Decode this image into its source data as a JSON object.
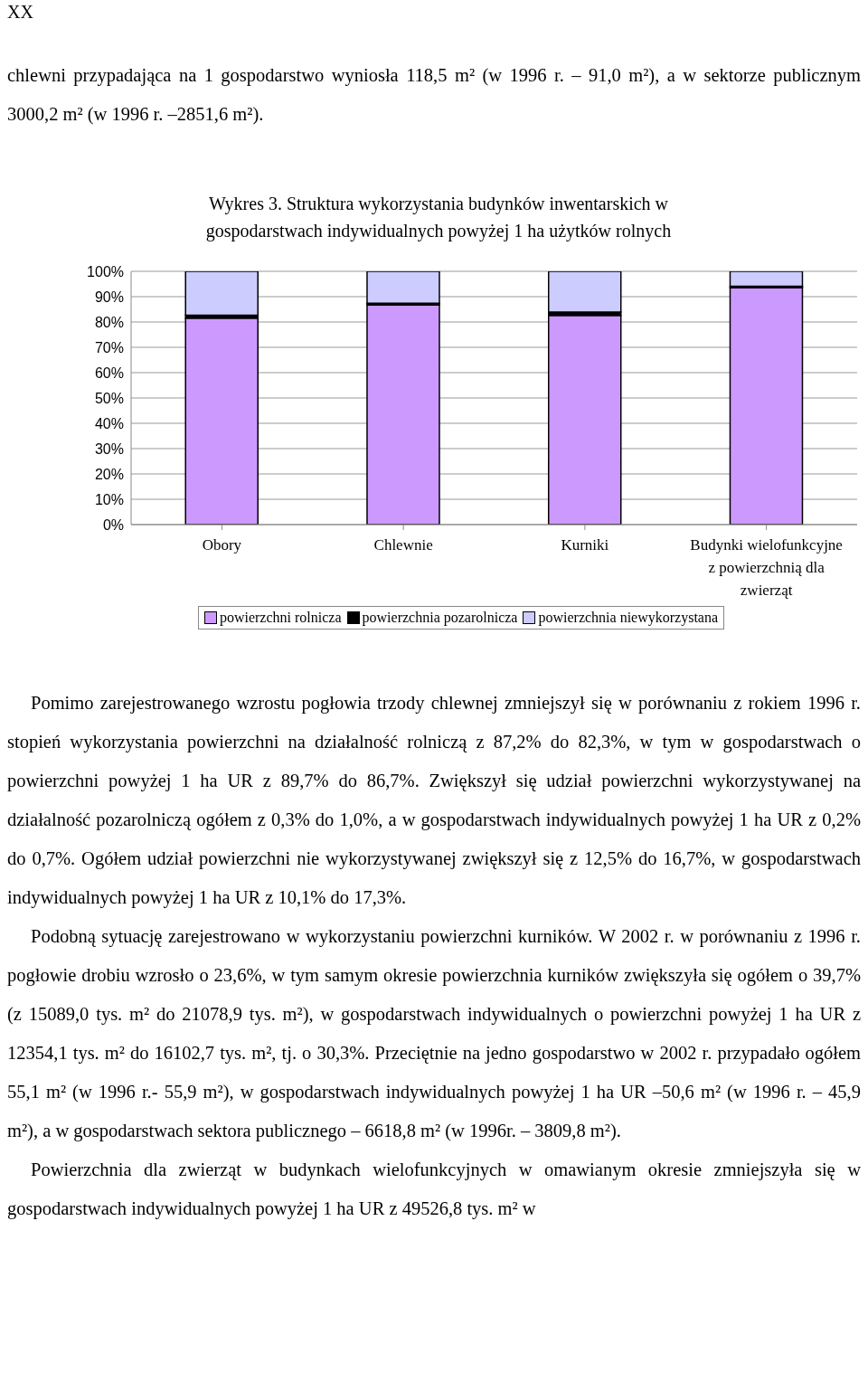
{
  "chart_data": {
    "type": "bar",
    "stacked": true,
    "title": "Wykres 3. Struktura wykorzystania budynków inwentarskich w gospodarstwach indywidualnych powyżej 1 ha użytków rolnych",
    "categories": [
      "Obory",
      "Chlewnie",
      "Kurniki",
      "Budynki wielofunkcyjne z powierzchnią dla zwierząt"
    ],
    "series": [
      {
        "name": "powierzchni rolnicza",
        "color": "#cc99ff",
        "values": [
          81.5,
          86.7,
          82.6,
          93.6
        ]
      },
      {
        "name": "powierzchnia pozarolnicza",
        "color": "#000000",
        "values": [
          1.2,
          0.7,
          1.3,
          0.5
        ]
      },
      {
        "name": "powierzchnia niewykorzystana",
        "color": "#ccccff",
        "values": [
          17.3,
          12.6,
          16.1,
          5.9
        ]
      }
    ],
    "ylim": [
      0,
      100
    ],
    "yticks": [
      {
        "value": 0,
        "label": "0%"
      },
      {
        "value": 10,
        "label": "10%"
      },
      {
        "value": 20,
        "label": "20%"
      },
      {
        "value": 30,
        "label": "30%"
      },
      {
        "value": 40,
        "label": "40%"
      },
      {
        "value": 50,
        "label": "50%"
      },
      {
        "value": 60,
        "label": "60%"
      },
      {
        "value": 70,
        "label": "70%"
      },
      {
        "value": 80,
        "label": "80%"
      },
      {
        "value": 90,
        "label": "90%"
      },
      {
        "value": 100,
        "label": "100%"
      }
    ],
    "grid": "y",
    "legend": "bottom",
    "annotations": [
      "XX",
      "chlewni przypadająca na 1 gospodarstwo wyniosła 118,5 m² (w 1996 r. – 91,0 m²), a w sektorze publicznym 3000,2 m² (w 1996 r. –2851,6 m²).",
      "Pomimo zarejestrowanego wzrostu pogłowia trzody chlewnej zmniejszył się w porównaniu z rokiem 1996 r. stopień wykorzystania powierzchni na działalność rolniczą z 87,2% do 82,3%, w tym w gospodarstwach o powierzchni powyżej 1 ha UR z 89,7% do 86,7%. Zwiększył się udział powierzchni wykorzystywanej na działalność pozarolniczą ogółem z 0,3% do 1,0%, a w gospodarstwach indywidualnych powyżej 1 ha UR z 0,2% do 0,7%. Ogółem udział powierzchni nie wykorzystywanej zwiększył się z 12,5% do 16,7%, w gospodarstwach indywidualnych powyżej 1 ha UR z 10,1% do 17,3%.",
      "Podobną sytuację zarejestrowano w wykorzystaniu powierzchni kurników. W 2002 r. w porównaniu z 1996 r. pogłowie drobiu wzrosło o 23,6%, w tym samym okresie powierzchnia kurników zwiększyła się ogółem o 39,7% (z 15089,0 tys. m² do 21078,9 tys. m²), w gospodarstwach indywidualnych o powierzchni powyżej 1 ha UR z 12354,1 tys. m² do 16102,7 tys. m², tj. o 30,3%. Przeciętnie na jedno gospodarstwo w 2002 r. przypadało ogółem 55,1 m² (w 1996 r.- 55,9 m²), w gospodarstwach indywidualnych powyżej 1 ha UR –50,6 m² (w 1996 r. – 45,9 m²), a w gospodarstwach sektora publicznego – 6618,8 m² (w 1996r. – 3809,8 m²).",
      "Powierzchnia dla zwierząt w budynkach wielofunkcyjnych w omawianym okresie zmniejszyła się w gospodarstwach indywidualnych powyżej 1 ha UR z 49526,8 tys. m² w"
    ]
  }
}
